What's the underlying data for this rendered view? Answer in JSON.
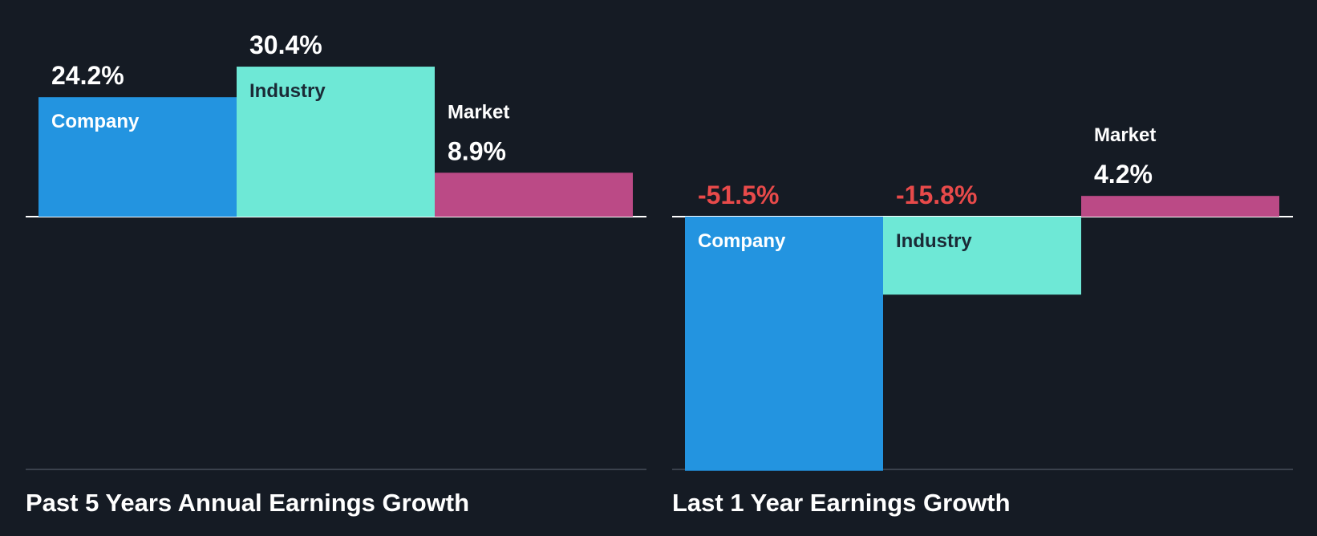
{
  "colors": {
    "background": "#151b24",
    "company": "#2394e0",
    "industry": "#6ee8d6",
    "market": "#bb4a86",
    "positive_text": "#ffffff",
    "negative_text": "#e84a4a",
    "label_on_dark_bar": "#ffffff",
    "label_on_light_bar": "#1b2a36",
    "zero_line": "#ffffff",
    "baseline": "#3a414c"
  },
  "chart_data": [
    {
      "type": "bar",
      "title": "Past 5 Years Annual Earnings Growth",
      "categories": [
        "Company",
        "Industry",
        "Market"
      ],
      "values": [
        24.2,
        30.4,
        8.9
      ],
      "value_labels": [
        "24.2%",
        "30.4%",
        "8.9%"
      ],
      "unit": "%",
      "ylim": [
        -52,
        31
      ]
    },
    {
      "type": "bar",
      "title": "Last 1 Year Earnings Growth",
      "categories": [
        "Company",
        "Industry",
        "Market"
      ],
      "values": [
        -51.5,
        -15.8,
        4.2
      ],
      "value_labels": [
        "-51.5%",
        "-15.8%",
        "4.2%"
      ],
      "unit": "%",
      "ylim": [
        -52,
        31
      ]
    }
  ]
}
